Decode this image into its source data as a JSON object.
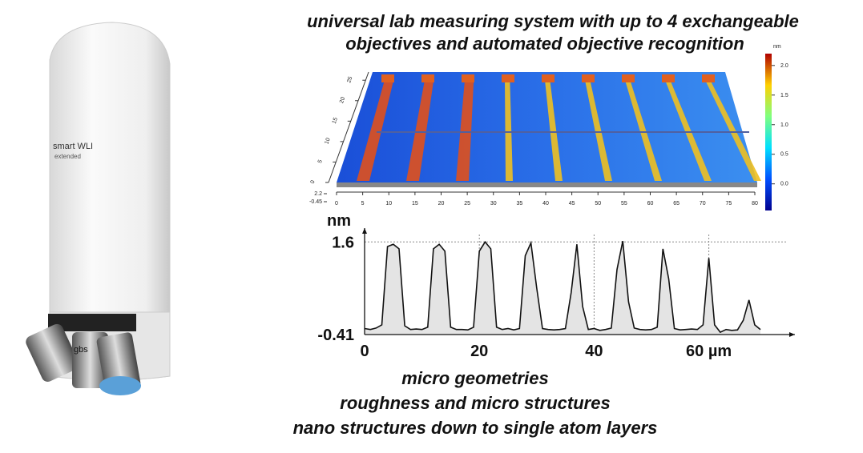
{
  "header": {
    "lines": [
      "universal lab measuring system with up to 4 exchangeable",
      "objectives and automated objective recognition"
    ]
  },
  "product": {
    "brand": "smart WLI",
    "edition": "extended",
    "maker": "gbs"
  },
  "captions": [
    "micro geometries",
    "roughness and micro structures",
    "nano structures down to single atom layers"
  ],
  "chart_data": [
    {
      "type": "surface",
      "xlim": [
        0,
        80
      ],
      "xticks": [
        0,
        5,
        10,
        15,
        20,
        25,
        30,
        35,
        40,
        45,
        50,
        55,
        60,
        65,
        70,
        75,
        80
      ],
      "ylim": [
        0,
        27
      ],
      "yticks": [
        0,
        5,
        10,
        15,
        20,
        25
      ],
      "zticks": [
        -0.45,
        2.2
      ],
      "clim": [
        -0.45,
        2.2
      ],
      "clabel": "nm",
      "cticks": [
        {
          "value": 0,
          "label": "0.0"
        },
        0.5,
        {
          "value": 1,
          "label": "1.0"
        },
        1.5,
        {
          "value": 2,
          "label": "2.0"
        }
      ]
    },
    {
      "type": "area",
      "ylabel": "nm",
      "xlim": [
        0,
        75
      ],
      "xticks": [
        0,
        20,
        40,
        {
          "value": 60,
          "label": "60 µm"
        }
      ],
      "ylim": [
        -0.41,
        1.9
      ],
      "yticks": [
        -0.41,
        1.6
      ],
      "grid": true,
      "x": [
        0,
        1,
        2,
        3,
        4,
        5,
        6,
        7,
        8,
        9,
        10,
        11,
        12,
        13,
        14,
        15,
        16,
        17,
        18,
        19,
        20,
        21,
        22,
        23,
        24,
        25,
        26,
        27,
        28,
        29,
        30,
        31,
        32,
        33,
        34,
        35,
        36,
        37,
        38,
        39,
        40,
        41,
        42,
        43,
        44,
        45,
        46,
        47,
        48,
        49,
        50,
        51,
        52,
        53,
        54,
        55,
        56,
        57,
        58,
        59,
        60,
        61,
        62,
        63,
        64,
        65,
        66,
        67,
        68,
        69
      ],
      "series": [
        {
          "color": "#111111",
          "values": [
            -0.28,
            -0.3,
            -0.27,
            -0.2,
            1.5,
            1.55,
            1.45,
            -0.22,
            -0.3,
            -0.29,
            -0.3,
            -0.25,
            1.45,
            1.55,
            1.4,
            -0.25,
            -0.3,
            -0.3,
            -0.31,
            -0.25,
            1.4,
            1.6,
            1.45,
            -0.25,
            -0.3,
            -0.28,
            -0.31,
            -0.28,
            1.3,
            1.58,
            0.6,
            -0.28,
            -0.3,
            -0.31,
            -0.3,
            -0.28,
            0.5,
            1.55,
            0.2,
            -0.3,
            -0.28,
            -0.32,
            -0.3,
            -0.27,
            1.0,
            1.62,
            0.3,
            -0.27,
            -0.3,
            -0.31,
            -0.3,
            -0.25,
            1.45,
            0.8,
            -0.28,
            -0.31,
            -0.3,
            -0.29,
            -0.3,
            -0.2,
            1.25,
            -0.2,
            -0.36,
            -0.3,
            -0.32,
            -0.31,
            -0.1,
            0.34,
            -0.2,
            -0.3
          ]
        }
      ]
    }
  ]
}
